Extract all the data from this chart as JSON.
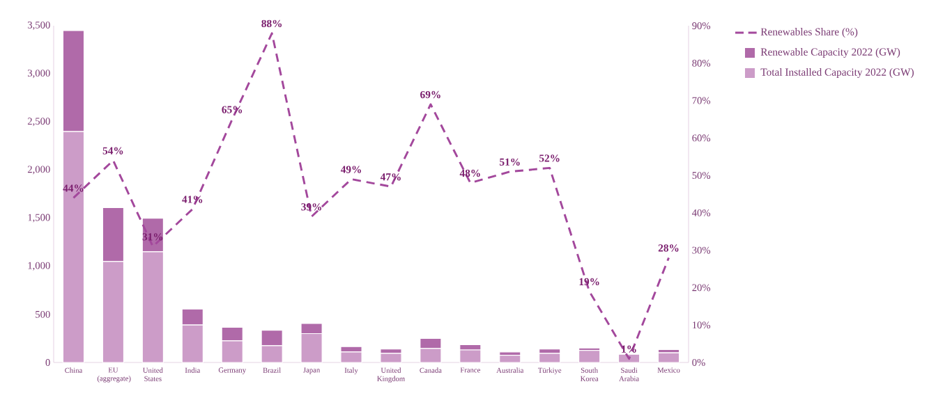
{
  "chart_data": {
    "type": "bar",
    "stacked": true,
    "categories": [
      "China",
      "EU (aggregate)",
      "United States",
      "India",
      "Germany",
      "Brazil",
      "Japan",
      "Italy",
      "United Kingdom",
      "Canada",
      "France",
      "Australia",
      "Türkiye",
      "South Korea",
      "Saudi Arabia",
      "Mexico"
    ],
    "series": [
      {
        "name": "Total Installed Capacity 2022 (GW)",
        "color": "#cc9cc8",
        "values": [
          2400,
          1050,
          1150,
          390,
          225,
          175,
          300,
          110,
          95,
          145,
          130,
          75,
          95,
          125,
          85,
          100
        ]
      },
      {
        "name": "Renewable Capacity 2022 (GW)",
        "color": "#b06aa9",
        "values": [
          1050,
          560,
          350,
          165,
          140,
          160,
          105,
          55,
          45,
          105,
          55,
          35,
          45,
          25,
          1,
          35
        ]
      },
      {
        "name": "Renewables Share (%)",
        "type": "line",
        "axis": "y2",
        "color": "#a3489c",
        "line_style": "dashed",
        "values": [
          44,
          54,
          31,
          41,
          65,
          88,
          39,
          49,
          47,
          69,
          48,
          51,
          52,
          19,
          1,
          28
        ],
        "value_labels": [
          "44%",
          "54%",
          "31%",
          "41%",
          "65%",
          "88%",
          "39%",
          "49%",
          "47%",
          "69%",
          "48%",
          "51%",
          "52%",
          "19%",
          "1%",
          "28%"
        ]
      }
    ],
    "ylim": [
      0,
      3500
    ],
    "yticks": [
      0,
      500,
      {
        "value": 1000,
        "label": "1,000"
      },
      {
        "value": 1500,
        "label": "1,500"
      },
      {
        "value": 2000,
        "label": "2,000"
      },
      {
        "value": 2500,
        "label": "2,500"
      },
      {
        "value": 3000,
        "label": "3,000"
      },
      {
        "value": 3500,
        "label": "3,500"
      }
    ],
    "y2lim": [
      0,
      90
    ],
    "y2ticks": [
      {
        "value": 0,
        "label": "0%"
      },
      {
        "value": 10,
        "label": "10%"
      },
      {
        "value": 20,
        "label": "20%"
      },
      {
        "value": 30,
        "label": "30%"
      },
      {
        "value": 40,
        "label": "40%"
      },
      {
        "value": 50,
        "label": "50%"
      },
      {
        "value": 60,
        "label": "60%"
      },
      {
        "value": 70,
        "label": "70%"
      },
      {
        "value": 80,
        "label": "80%"
      },
      {
        "value": 90,
        "label": "90%"
      }
    ],
    "legend": "top right",
    "grid": false
  }
}
